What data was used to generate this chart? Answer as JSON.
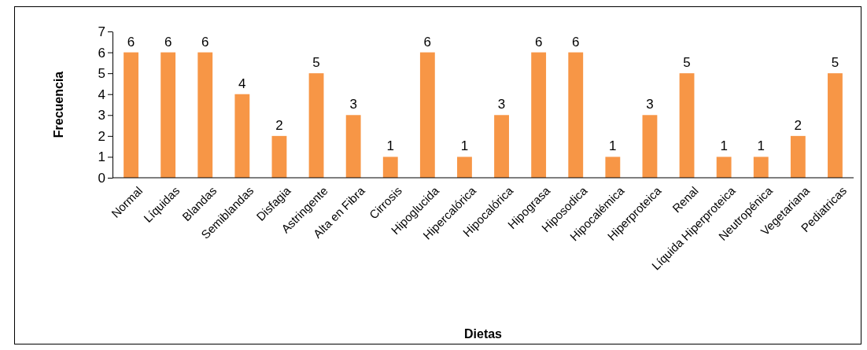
{
  "chart_data": {
    "type": "bar",
    "xlabel": "Dietas",
    "ylabel": "Frecuencia",
    "categories": [
      "Normal",
      "Líquidas",
      "Blandas",
      "Semiblandas",
      "Disfagia",
      "Astringente",
      "Alta en Fibra",
      "Cirrosis",
      "Hipoglucida",
      "Hipercalórica",
      "Hipocalórica",
      "Hipograsa",
      "Hiposodica",
      "Hipocalémica",
      "Hiperproteica",
      "Renal",
      "Líquida Hiperproteica",
      "Neutropénica",
      "Vegetariana",
      "Pediatricas"
    ],
    "values": [
      6,
      6,
      6,
      4,
      2,
      5,
      3,
      1,
      6,
      1,
      3,
      6,
      6,
      1,
      3,
      5,
      1,
      1,
      2,
      5
    ],
    "color": "#f79646",
    "ylim": [
      0,
      7
    ],
    "yticks": [
      0,
      1,
      2,
      3,
      4,
      5,
      6,
      7
    ],
    "data_labels": true
  }
}
